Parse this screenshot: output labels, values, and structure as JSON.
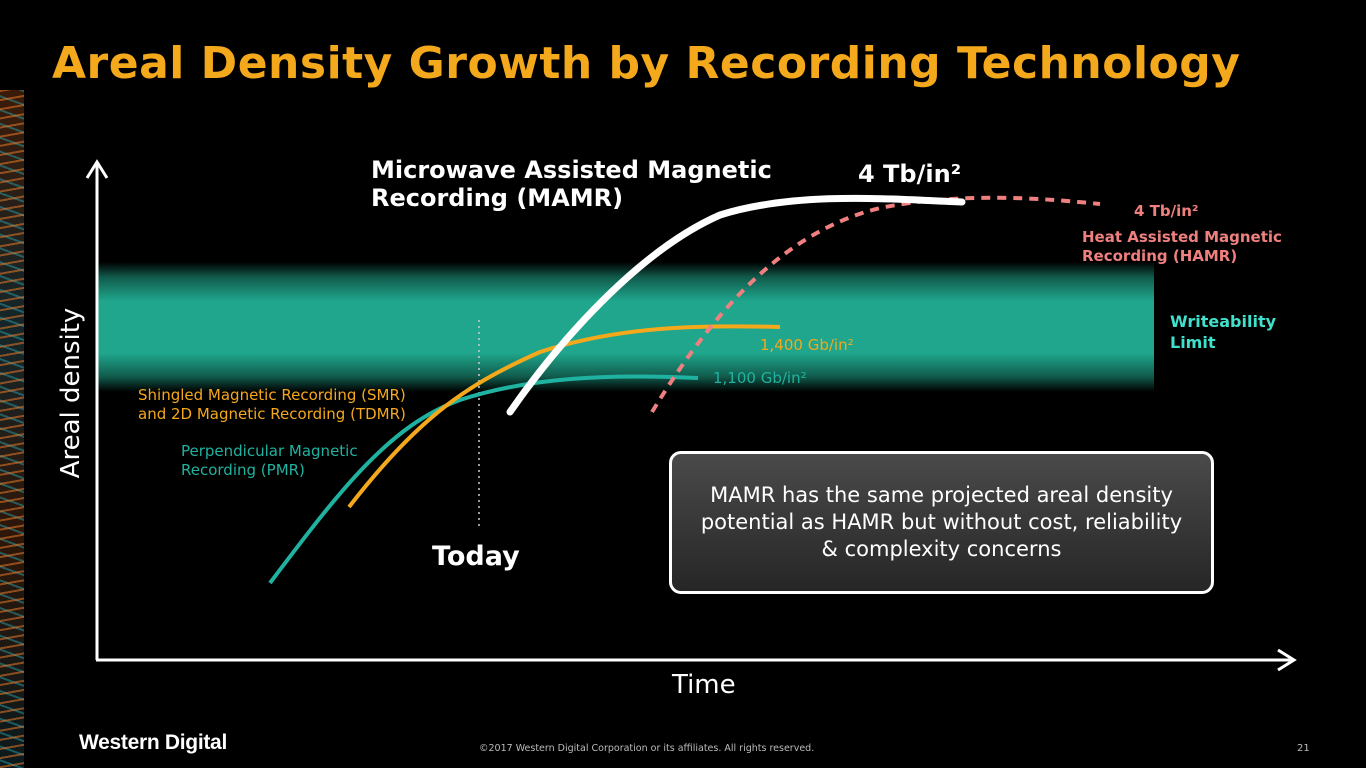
{
  "slide": {
    "title": "Areal Density Growth by Recording Technology",
    "page_number": "21",
    "copyright": "©2017 Western Digital Corporation or its affiliates. All rights reserved.",
    "brand": "Western Digital"
  },
  "diagram": {
    "y_axis_label": "Areal density",
    "x_axis_label": "Time",
    "band_label": "Writeability Limit",
    "today_label": "Today",
    "technologies": [
      {
        "id": "pmr",
        "name": "Perpendicular Magnetic Recording (PMR)",
        "value": "1,100 Gb/in²",
        "color": "#20b2a0"
      },
      {
        "id": "smr",
        "name": "Shingled Magnetic Recording (SMR) and 2D Magnetic Recording (TDMR)",
        "value": "1,400 Gb/in²",
        "color": "#f4a81c"
      },
      {
        "id": "mamr",
        "name": "Microwave Assisted Magnetic Recording (MAMR)",
        "value": "4 Tb/in²",
        "color": "#ffffff"
      },
      {
        "id": "hamr",
        "name": "Heat Assisted Magnetic Recording (HAMR)",
        "value": "4 Tb/in²",
        "color": "#f08080"
      }
    ],
    "labels": {
      "mamr_line1": "Microwave Assisted Magnetic",
      "mamr_line2": "Recording (MAMR)",
      "mamr_value": "4 Tb/in²",
      "hamr_value": "4 Tb/in²",
      "hamr_line1": "Heat Assisted Magnetic",
      "hamr_line2": "Recording (HAMR)",
      "band_line1": "Writeability",
      "band_line2": "Limit",
      "smr_value": "1,400 Gb/in²",
      "pmr_value": "1,100 Gb/in²",
      "smr_line1": "Shingled Magnetic Recording (SMR)",
      "smr_line2": "and 2D Magnetic Recording (TDMR)",
      "pmr_line1": "Perpendicular Magnetic",
      "pmr_line2": "Recording (PMR)"
    },
    "callout": "MAMR has the same projected areal density potential as HAMR but without cost, reliability & complexity concerns"
  }
}
